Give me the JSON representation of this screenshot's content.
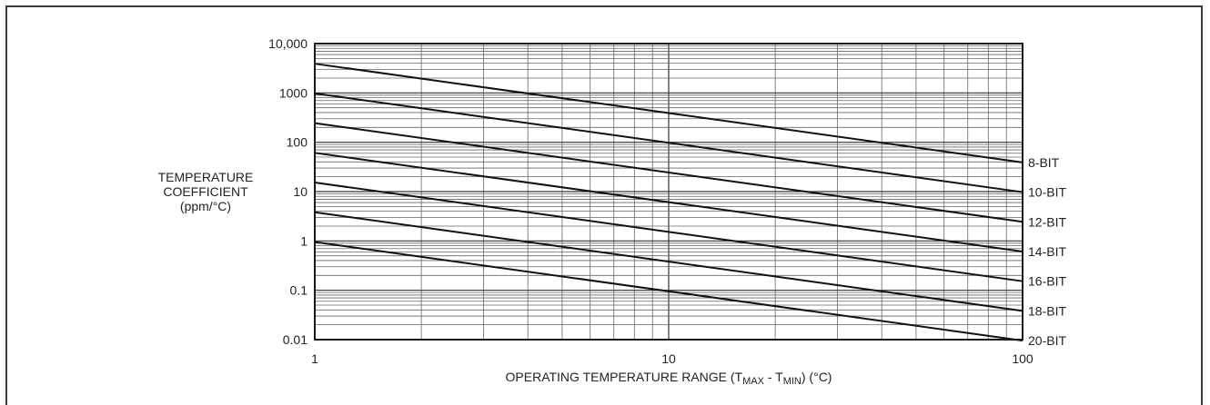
{
  "chart_data": {
    "type": "line",
    "title": "",
    "xlabel": "",
    "xlabel_parts": [
      "OPERATING TEMPERATURE RANGE (T",
      "MAX",
      " - T",
      "MIN",
      ") (°C)"
    ],
    "ylabel": [
      "TEMPERATURE",
      "COEFFICIENT",
      "(ppm/°C)"
    ],
    "x_scale": "log",
    "y_scale": "log",
    "xlim": [
      1,
      100
    ],
    "ylim": [
      0.01,
      10000
    ],
    "x_ticks": [
      {
        "value": 1,
        "label": "1"
      },
      {
        "value": 10,
        "label": "10"
      },
      {
        "value": 100,
        "label": "100"
      }
    ],
    "y_ticks": [
      {
        "value": 10000,
        "label": "10,000"
      },
      {
        "value": 1000,
        "label": "1000"
      },
      {
        "value": 100,
        "label": "100"
      },
      {
        "value": 10,
        "label": "10"
      },
      {
        "value": 1,
        "label": "1"
      },
      {
        "value": 0.1,
        "label": "0.1"
      },
      {
        "value": 0.01,
        "label": "0.01"
      }
    ],
    "grid": true,
    "series": [
      {
        "name": "8-BIT",
        "x": [
          1,
          100
        ],
        "y": [
          3906,
          39.06
        ]
      },
      {
        "name": "10-BIT",
        "x": [
          1,
          100
        ],
        "y": [
          976.6,
          9.766
        ]
      },
      {
        "name": "12-BIT",
        "x": [
          1,
          100
        ],
        "y": [
          244.1,
          2.441
        ]
      },
      {
        "name": "14-BIT",
        "x": [
          1,
          100
        ],
        "y": [
          61.04,
          0.6104
        ]
      },
      {
        "name": "16-BIT",
        "x": [
          1,
          100
        ],
        "y": [
          15.26,
          0.1526
        ]
      },
      {
        "name": "18-BIT",
        "x": [
          1,
          100
        ],
        "y": [
          3.815,
          0.03815
        ]
      },
      {
        "name": "20-BIT",
        "x": [
          1,
          100
        ],
        "y": [
          0.9537,
          0.009537
        ]
      }
    ]
  }
}
